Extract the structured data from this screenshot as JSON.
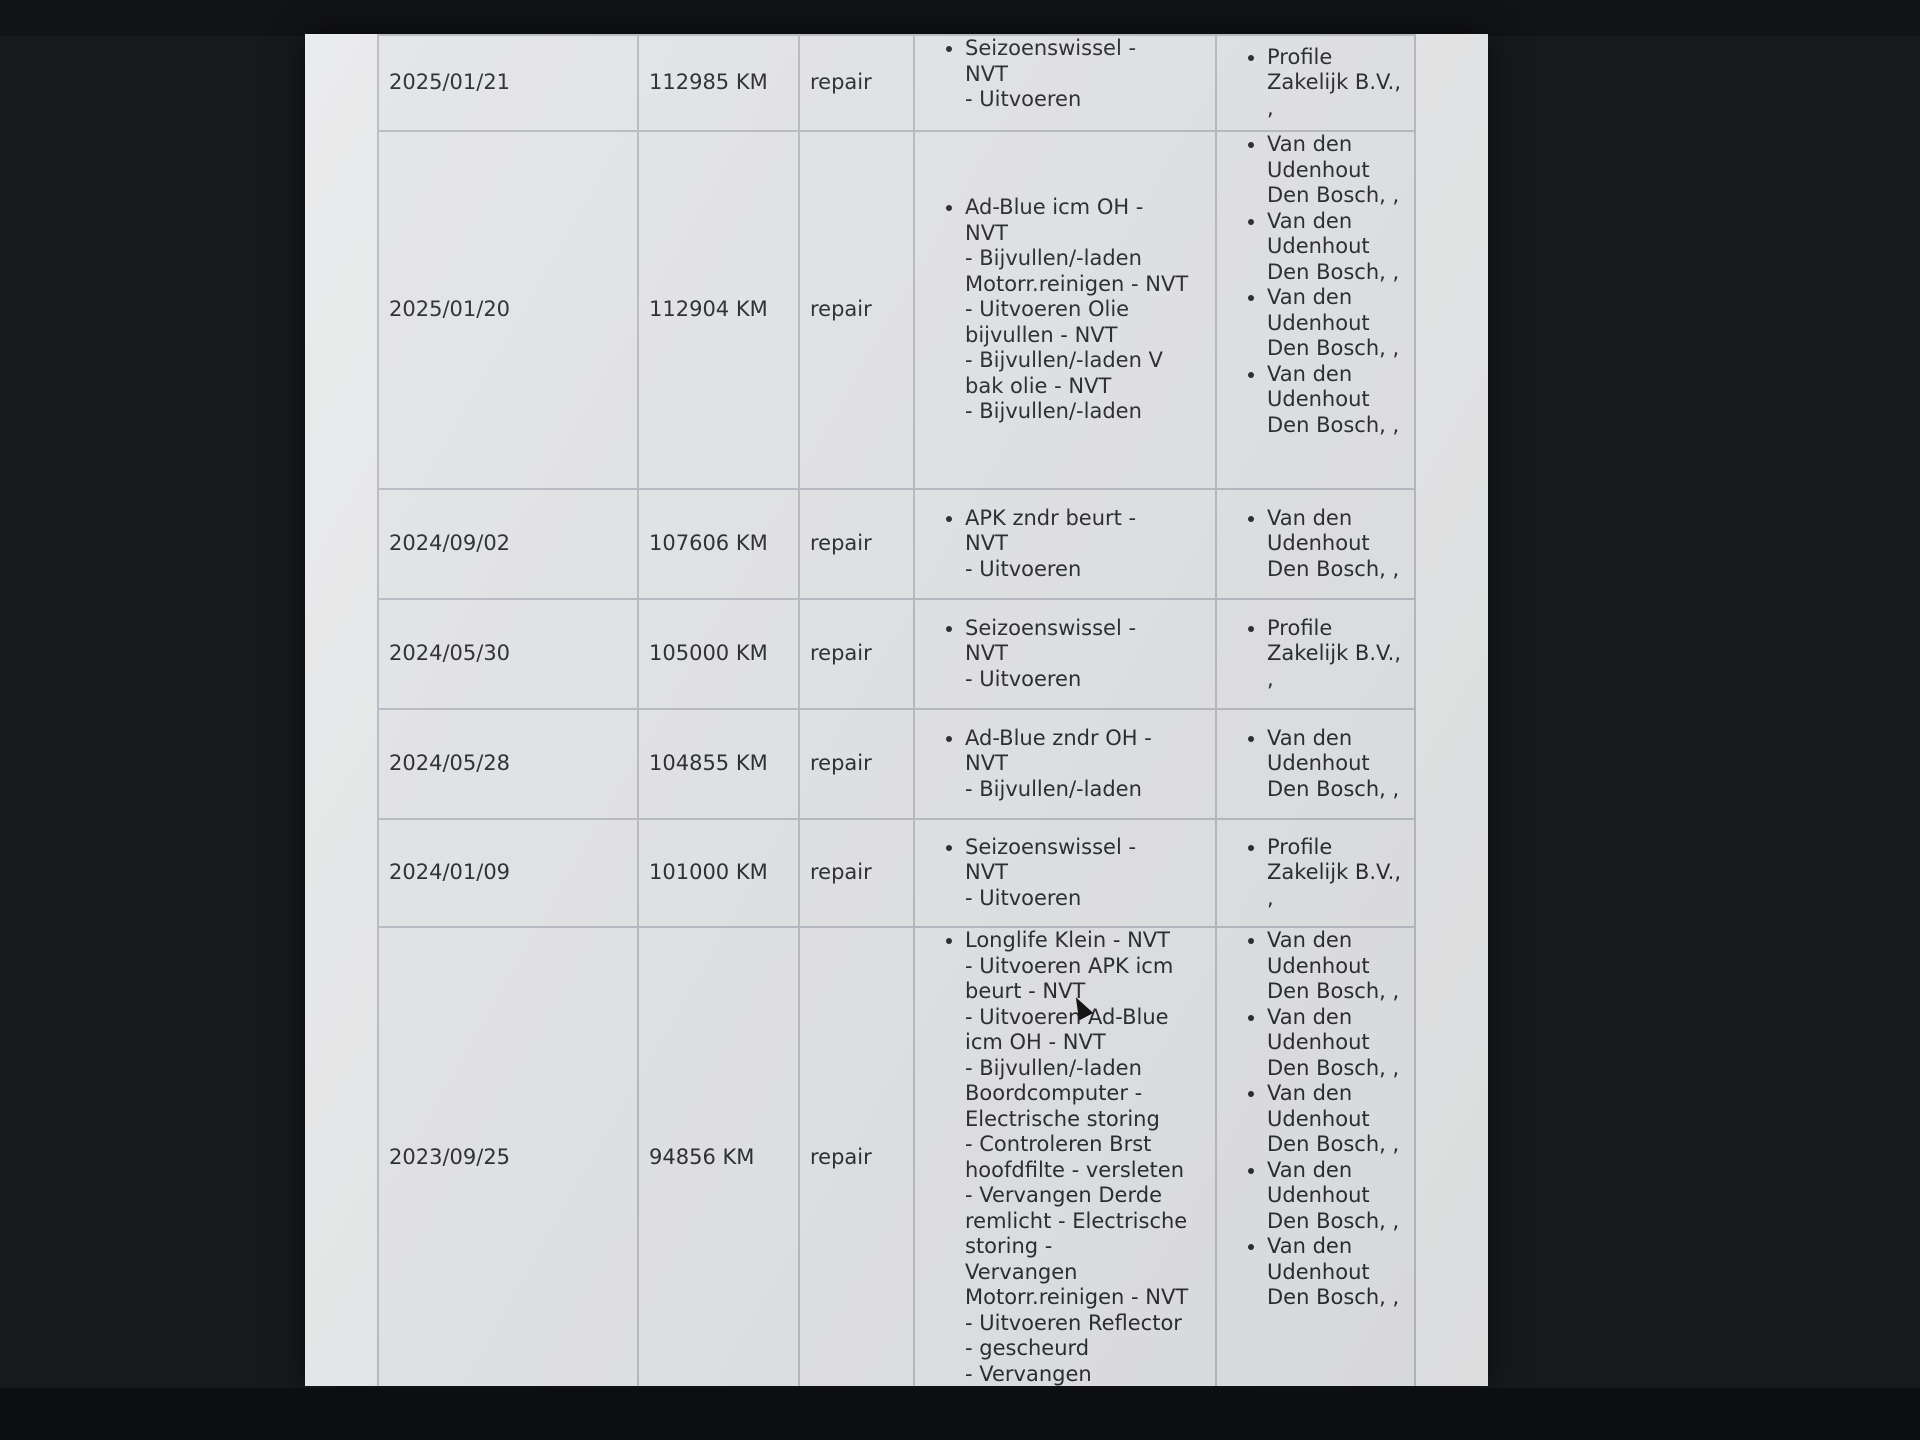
{
  "table": {
    "rows": [
      {
        "date": "2025/01/21",
        "mileage": "112985 KM",
        "type": "repair",
        "descriptions": [
          "Seizoenswissel   -\nNVT\n- Uitvoeren"
        ],
        "workshops": [
          "Profile\nZakelijk B.V.,\n,"
        ]
      },
      {
        "date": "2025/01/20",
        "mileage": "112904 KM",
        "type": "repair",
        "descriptions": [
          "Ad-Blue icm OH   -\nNVT\n- Bijvullen/-laden\nMotorr.reinigen  - NVT\n- Uitvoeren  Olie\nbijvullen   - NVT\n- Bijvullen/-laden  V\nbak olie       - NVT\n- Bijvullen/-laden"
        ],
        "workshops": [
          "Van den\nUdenhout\nDen Bosch, ,",
          "Van den\nUdenhout\nDen Bosch, ,",
          "Van den\nUdenhout\nDen Bosch, ,",
          "Van den\nUdenhout\nDen Bosch, ,"
        ]
      },
      {
        "date": "2024/09/02",
        "mileage": "107606 KM",
        "type": "repair",
        "descriptions": [
          "APK zndr beurt   -\nNVT\n- Uitvoeren"
        ],
        "workshops": [
          "Van den\nUdenhout\nDen Bosch, ,"
        ]
      },
      {
        "date": "2024/05/30",
        "mileage": "105000 KM",
        "type": "repair",
        "descriptions": [
          "Seizoenswissel   -\nNVT\n- Uitvoeren"
        ],
        "workshops": [
          "Profile\nZakelijk B.V.,\n,"
        ]
      },
      {
        "date": "2024/05/28",
        "mileage": "104855 KM",
        "type": "repair",
        "descriptions": [
          "Ad-Blue zndr OH   -\nNVT\n- Bijvullen/-laden"
        ],
        "workshops": [
          "Van den\nUdenhout\nDen Bosch, ,"
        ]
      },
      {
        "date": "2024/01/09",
        "mileage": "101000 KM",
        "type": "repair",
        "descriptions": [
          "Seizoenswissel   -\nNVT\n- Uitvoeren"
        ],
        "workshops": [
          "Profile\nZakelijk B.V.,\n,"
        ]
      },
      {
        "date": "2023/09/25",
        "mileage": "94856 KM",
        "type": "repair",
        "descriptions": [
          "Longlife Klein   - NVT\n- Uitvoeren  APK icm\nbeurt    - NVT\n- Uitvoeren  Ad-Blue\nicm OH   - NVT\n- Bijvullen/-laden\nBoordcomputer    -\nElectrische storing\n- Controleren  Brst\nhoofdfilte  - versleten\n- Vervangen  Derde\nremlicht   - Electrische\nstoring           -\nVervangen\nMotorr.reinigen  - NVT\n- Uitvoeren  Reflector\n- gescheurd\n- Vervangen"
        ],
        "workshops": [
          "Van den\nUdenhout\nDen Bosch, ,",
          "Van den\nUdenhout\nDen Bosch, ,",
          "Van den\nUdenhout\nDen Bosch, ,",
          "Van den\nUdenhout\nDen Bosch, ,",
          "Van den\nUdenhout\nDen Bosch, ,"
        ]
      }
    ]
  }
}
